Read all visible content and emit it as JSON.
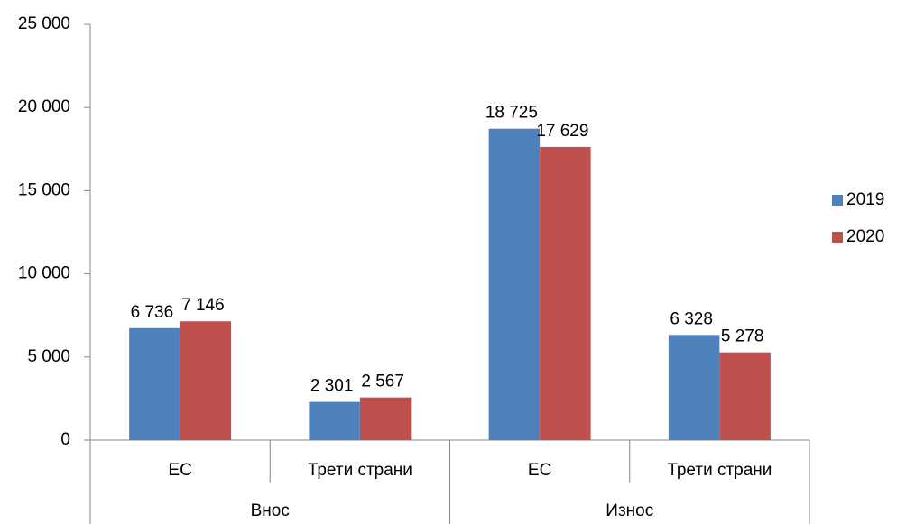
{
  "chart_data": {
    "type": "bar",
    "categories": [
      "ЕС",
      "Трети страни",
      "ЕС",
      "Трети страни"
    ],
    "groups": [
      "Внос",
      "Износ"
    ],
    "series": [
      {
        "name": "2019",
        "color": "#4f81bd",
        "values": [
          6736,
          2301,
          18725,
          6328
        ],
        "value_labels": [
          "6 736",
          "2 301",
          "18 725",
          "6 328"
        ]
      },
      {
        "name": "2020",
        "color": "#c0504d",
        "values": [
          7146,
          2567,
          17629,
          5278
        ],
        "value_labels": [
          "7 146",
          "2 567",
          "17 629",
          "5 278"
        ]
      }
    ],
    "ylim": [
      0,
      25000
    ],
    "yticks": [
      0,
      {
        "value": 5000,
        "label": "5 000"
      },
      {
        "value": 10000,
        "label": "10 000"
      },
      {
        "value": 15000,
        "label": "15 000"
      },
      {
        "value": 20000,
        "label": "20 000"
      },
      {
        "value": 25000,
        "label": "25 000"
      }
    ],
    "grid": false,
    "legend": "right"
  }
}
